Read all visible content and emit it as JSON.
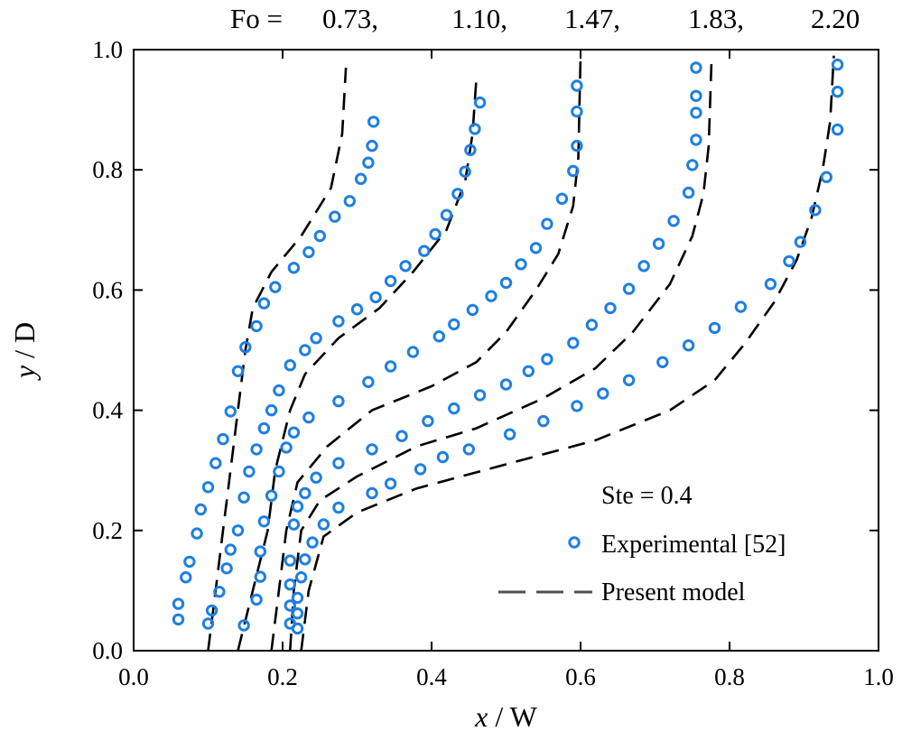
{
  "chart_data": {
    "type": "line",
    "fo_prefix": "Fo =",
    "fo_labels": [
      "0.73,",
      "1.10,",
      "1.47,",
      "1.83,",
      "2.20"
    ],
    "xlabel_var": "x",
    "xlabel_unit": " / W",
    "ylabel_var": "y",
    "ylabel_unit": " / D",
    "xlim": [
      0,
      1
    ],
    "ylim": [
      0,
      1
    ],
    "xticks": [
      "0.0",
      "0.2",
      "0.4",
      "0.6",
      "0.8",
      "1.0"
    ],
    "yticks": [
      "0.0",
      "0.2",
      "0.4",
      "0.6",
      "0.8",
      "1.0"
    ],
    "legend": {
      "location": "bottom-right",
      "ste_label": "Ste = 0.4",
      "experimental_label": "Experimental [52]",
      "model_label": "Present model"
    },
    "colors": {
      "experimental": "#1f7fe0",
      "model": "#000000",
      "legend_model": "#505050"
    },
    "model_series": [
      {
        "fo": "0.73",
        "points": [
          [
            0.1,
            0.0
          ],
          [
            0.11,
            0.1
          ],
          [
            0.12,
            0.2
          ],
          [
            0.13,
            0.3
          ],
          [
            0.14,
            0.4
          ],
          [
            0.15,
            0.5
          ],
          [
            0.16,
            0.57
          ],
          [
            0.185,
            0.63
          ],
          [
            0.225,
            0.69
          ],
          [
            0.265,
            0.77
          ],
          [
            0.28,
            0.86
          ],
          [
            0.285,
            0.97
          ]
        ]
      },
      {
        "fo": "1.10",
        "points": [
          [
            0.14,
            0.0
          ],
          [
            0.16,
            0.1
          ],
          [
            0.18,
            0.2
          ],
          [
            0.19,
            0.3
          ],
          [
            0.21,
            0.4
          ],
          [
            0.23,
            0.46
          ],
          [
            0.275,
            0.52
          ],
          [
            0.33,
            0.57
          ],
          [
            0.375,
            0.63
          ],
          [
            0.42,
            0.7
          ],
          [
            0.445,
            0.78
          ],
          [
            0.455,
            0.86
          ],
          [
            0.46,
            0.95
          ]
        ]
      },
      {
        "fo": "1.47",
        "points": [
          [
            0.185,
            0.0
          ],
          [
            0.195,
            0.1
          ],
          [
            0.205,
            0.2
          ],
          [
            0.22,
            0.28
          ],
          [
            0.26,
            0.34
          ],
          [
            0.32,
            0.4
          ],
          [
            0.4,
            0.44
          ],
          [
            0.46,
            0.48
          ],
          [
            0.5,
            0.53
          ],
          [
            0.54,
            0.6
          ],
          [
            0.57,
            0.66
          ],
          [
            0.59,
            0.74
          ],
          [
            0.597,
            0.82
          ],
          [
            0.6,
            0.99
          ]
        ]
      },
      {
        "fo": "1.83",
        "points": [
          [
            0.21,
            0.0
          ],
          [
            0.215,
            0.1
          ],
          [
            0.225,
            0.2
          ],
          [
            0.25,
            0.25
          ],
          [
            0.3,
            0.29
          ],
          [
            0.38,
            0.34
          ],
          [
            0.46,
            0.37
          ],
          [
            0.55,
            0.42
          ],
          [
            0.62,
            0.47
          ],
          [
            0.67,
            0.53
          ],
          [
            0.72,
            0.61
          ],
          [
            0.75,
            0.69
          ],
          [
            0.765,
            0.76
          ],
          [
            0.772,
            0.84
          ],
          [
            0.776,
            0.99
          ]
        ]
      },
      {
        "fo": "2.20",
        "points": [
          [
            0.225,
            0.0
          ],
          [
            0.235,
            0.1
          ],
          [
            0.255,
            0.19
          ],
          [
            0.3,
            0.23
          ],
          [
            0.38,
            0.27
          ],
          [
            0.5,
            0.31
          ],
          [
            0.62,
            0.35
          ],
          [
            0.72,
            0.4
          ],
          [
            0.78,
            0.45
          ],
          [
            0.82,
            0.51
          ],
          [
            0.86,
            0.58
          ],
          [
            0.89,
            0.65
          ],
          [
            0.91,
            0.72
          ],
          [
            0.925,
            0.8
          ],
          [
            0.935,
            0.88
          ],
          [
            0.94,
            0.99
          ]
        ]
      }
    ],
    "experimental_series": [
      {
        "fo": "0.73",
        "points": [
          [
            0.06,
            0.052
          ],
          [
            0.06,
            0.078
          ],
          [
            0.07,
            0.122
          ],
          [
            0.075,
            0.148
          ],
          [
            0.085,
            0.195
          ],
          [
            0.09,
            0.235
          ],
          [
            0.1,
            0.272
          ],
          [
            0.11,
            0.312
          ],
          [
            0.12,
            0.352
          ],
          [
            0.13,
            0.398
          ],
          [
            0.14,
            0.465
          ],
          [
            0.15,
            0.505
          ],
          [
            0.165,
            0.54
          ],
          [
            0.175,
            0.578
          ],
          [
            0.19,
            0.605
          ],
          [
            0.215,
            0.637
          ],
          [
            0.235,
            0.663
          ],
          [
            0.25,
            0.69
          ],
          [
            0.27,
            0.722
          ],
          [
            0.29,
            0.748
          ],
          [
            0.305,
            0.785
          ],
          [
            0.315,
            0.812
          ],
          [
            0.32,
            0.84
          ],
          [
            0.322,
            0.88
          ]
        ]
      },
      {
        "fo": "1.10",
        "points": [
          [
            0.1,
            0.045
          ],
          [
            0.105,
            0.067
          ],
          [
            0.115,
            0.098
          ],
          [
            0.125,
            0.137
          ],
          [
            0.13,
            0.168
          ],
          [
            0.14,
            0.2
          ],
          [
            0.148,
            0.255
          ],
          [
            0.155,
            0.298
          ],
          [
            0.165,
            0.335
          ],
          [
            0.175,
            0.37
          ],
          [
            0.185,
            0.4
          ],
          [
            0.195,
            0.433
          ],
          [
            0.21,
            0.475
          ],
          [
            0.23,
            0.5
          ],
          [
            0.245,
            0.52
          ],
          [
            0.275,
            0.548
          ],
          [
            0.3,
            0.568
          ],
          [
            0.325,
            0.588
          ],
          [
            0.345,
            0.615
          ],
          [
            0.365,
            0.64
          ],
          [
            0.39,
            0.665
          ],
          [
            0.405,
            0.693
          ],
          [
            0.42,
            0.725
          ],
          [
            0.435,
            0.76
          ],
          [
            0.445,
            0.797
          ],
          [
            0.452,
            0.833
          ],
          [
            0.458,
            0.868
          ],
          [
            0.465,
            0.912
          ]
        ]
      },
      {
        "fo": "1.47",
        "points": [
          [
            0.148,
            0.042
          ],
          [
            0.165,
            0.085
          ],
          [
            0.17,
            0.123
          ],
          [
            0.17,
            0.165
          ],
          [
            0.175,
            0.215
          ],
          [
            0.185,
            0.258
          ],
          [
            0.195,
            0.298
          ],
          [
            0.205,
            0.338
          ],
          [
            0.215,
            0.363
          ],
          [
            0.235,
            0.388
          ],
          [
            0.275,
            0.415
          ],
          [
            0.315,
            0.447
          ],
          [
            0.345,
            0.473
          ],
          [
            0.375,
            0.497
          ],
          [
            0.41,
            0.523
          ],
          [
            0.43,
            0.543
          ],
          [
            0.455,
            0.567
          ],
          [
            0.48,
            0.59
          ],
          [
            0.5,
            0.612
          ],
          [
            0.52,
            0.643
          ],
          [
            0.54,
            0.67
          ],
          [
            0.555,
            0.71
          ],
          [
            0.575,
            0.752
          ],
          [
            0.59,
            0.798
          ],
          [
            0.595,
            0.84
          ],
          [
            0.595,
            0.897
          ],
          [
            0.595,
            0.94
          ]
        ]
      },
      {
        "fo": "1.83",
        "points": [
          [
            0.21,
            0.045
          ],
          [
            0.21,
            0.075
          ],
          [
            0.21,
            0.11
          ],
          [
            0.21,
            0.15
          ],
          [
            0.215,
            0.21
          ],
          [
            0.22,
            0.24
          ],
          [
            0.23,
            0.262
          ],
          [
            0.245,
            0.288
          ],
          [
            0.275,
            0.312
          ],
          [
            0.32,
            0.335
          ],
          [
            0.36,
            0.357
          ],
          [
            0.395,
            0.382
          ],
          [
            0.43,
            0.403
          ],
          [
            0.465,
            0.425
          ],
          [
            0.5,
            0.443
          ],
          [
            0.53,
            0.465
          ],
          [
            0.555,
            0.485
          ],
          [
            0.59,
            0.512
          ],
          [
            0.615,
            0.542
          ],
          [
            0.64,
            0.57
          ],
          [
            0.665,
            0.602
          ],
          [
            0.685,
            0.64
          ],
          [
            0.705,
            0.677
          ],
          [
            0.725,
            0.715
          ],
          [
            0.745,
            0.762
          ],
          [
            0.75,
            0.808
          ],
          [
            0.755,
            0.85
          ],
          [
            0.755,
            0.895
          ],
          [
            0.755,
            0.923
          ],
          [
            0.755,
            0.97
          ]
        ]
      },
      {
        "fo": "2.20",
        "points": [
          [
            0.22,
            0.037
          ],
          [
            0.22,
            0.062
          ],
          [
            0.22,
            0.088
          ],
          [
            0.225,
            0.122
          ],
          [
            0.23,
            0.152
          ],
          [
            0.24,
            0.18
          ],
          [
            0.255,
            0.21
          ],
          [
            0.275,
            0.238
          ],
          [
            0.32,
            0.262
          ],
          [
            0.345,
            0.278
          ],
          [
            0.385,
            0.302
          ],
          [
            0.415,
            0.322
          ],
          [
            0.45,
            0.335
          ],
          [
            0.505,
            0.36
          ],
          [
            0.55,
            0.382
          ],
          [
            0.595,
            0.407
          ],
          [
            0.63,
            0.428
          ],
          [
            0.665,
            0.45
          ],
          [
            0.71,
            0.48
          ],
          [
            0.745,
            0.508
          ],
          [
            0.78,
            0.537
          ],
          [
            0.815,
            0.572
          ],
          [
            0.855,
            0.61
          ],
          [
            0.88,
            0.648
          ],
          [
            0.895,
            0.68
          ],
          [
            0.915,
            0.733
          ],
          [
            0.93,
            0.788
          ],
          [
            0.945,
            0.867
          ],
          [
            0.945,
            0.93
          ],
          [
            0.945,
            0.975
          ]
        ]
      }
    ]
  }
}
